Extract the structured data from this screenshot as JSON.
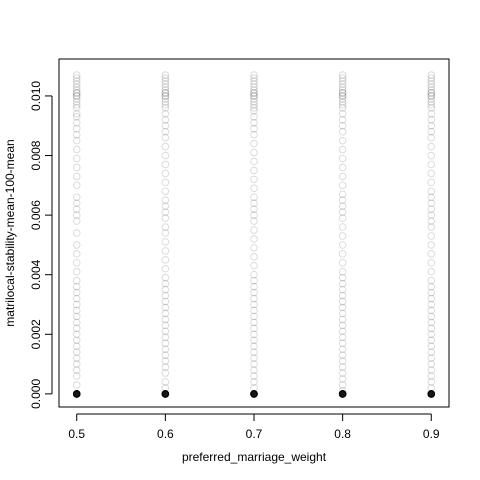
{
  "chart_data": {
    "type": "scatter",
    "xlabel": "preferred_marriage_weight",
    "ylabel": "matrilocal-stability-mean-100-mean",
    "x_ticks": [
      0.5,
      0.6,
      0.7,
      0.8,
      0.9
    ],
    "y_ticks": [
      0.0,
      0.002,
      0.004,
      0.006,
      0.008,
      0.01
    ],
    "y_tick_labels": [
      "0.000",
      "0.002",
      "0.004",
      "0.006",
      "0.008",
      "0.010"
    ],
    "xlim": [
      0.48,
      0.92
    ],
    "ylim": [
      -0.00044,
      0.01124
    ],
    "grid": false,
    "point_style": "open circle, semi-transparent black",
    "series": [
      {
        "x": 0.5,
        "y": [
          0.0,
          0.0,
          0.0,
          0.0003,
          0.0006,
          0.0008,
          0.001,
          0.0012,
          0.0014,
          0.0016,
          0.0018,
          0.002,
          0.0022,
          0.0024,
          0.0026,
          0.0028,
          0.003,
          0.0032,
          0.0034,
          0.0036,
          0.0038,
          0.0041,
          0.0044,
          0.0047,
          0.005,
          0.0054,
          0.0058,
          0.006,
          0.0062,
          0.0064,
          0.0066,
          0.007,
          0.0073,
          0.0076,
          0.0079,
          0.0082,
          0.0085,
          0.0087,
          0.0089,
          0.0091,
          0.0093,
          0.0094,
          0.0096,
          0.0097,
          0.0098,
          0.0099,
          0.01,
          0.01,
          0.0101,
          0.0101,
          0.0102,
          0.0103,
          0.0104,
          0.0105,
          0.0106,
          0.0107
        ]
      },
      {
        "x": 0.6,
        "y": [
          0.0,
          0.0,
          0.0,
          0.0002,
          0.0004,
          0.0007,
          0.0009,
          0.0011,
          0.0013,
          0.0015,
          0.0017,
          0.0019,
          0.0021,
          0.0023,
          0.0025,
          0.0027,
          0.0029,
          0.0031,
          0.0033,
          0.0035,
          0.0037,
          0.0039,
          0.0042,
          0.0045,
          0.0048,
          0.0051,
          0.0054,
          0.0056,
          0.0059,
          0.0061,
          0.0063,
          0.0065,
          0.0068,
          0.0071,
          0.0074,
          0.0077,
          0.008,
          0.0083,
          0.0086,
          0.0088,
          0.009,
          0.0092,
          0.0094,
          0.0096,
          0.0097,
          0.0098,
          0.0099,
          0.01,
          0.01,
          0.0101,
          0.0101,
          0.0102,
          0.0103,
          0.0104,
          0.0105,
          0.0106,
          0.0107
        ]
      },
      {
        "x": 0.7,
        "y": [
          0.0,
          0.0,
          0.0,
          0.0002,
          0.0004,
          0.0006,
          0.0008,
          0.001,
          0.0012,
          0.0014,
          0.0016,
          0.0018,
          0.002,
          0.0022,
          0.0024,
          0.0026,
          0.0028,
          0.003,
          0.0032,
          0.0034,
          0.0036,
          0.0038,
          0.004,
          0.0043,
          0.0046,
          0.0049,
          0.0052,
          0.0055,
          0.0058,
          0.006,
          0.0062,
          0.0064,
          0.0066,
          0.0069,
          0.0072,
          0.0075,
          0.0078,
          0.0081,
          0.0084,
          0.0087,
          0.0089,
          0.0091,
          0.0093,
          0.0095,
          0.0096,
          0.0097,
          0.0098,
          0.0099,
          0.01,
          0.01,
          0.0101,
          0.0101,
          0.0102,
          0.0103,
          0.0104,
          0.0105,
          0.0106,
          0.0107
        ]
      },
      {
        "x": 0.8,
        "y": [
          0.0,
          0.0,
          0.0,
          0.0001,
          0.0003,
          0.0005,
          0.0007,
          0.0009,
          0.0011,
          0.0013,
          0.0015,
          0.0017,
          0.0019,
          0.0021,
          0.0023,
          0.0025,
          0.0027,
          0.0029,
          0.0031,
          0.0033,
          0.0035,
          0.0037,
          0.0039,
          0.0041,
          0.0044,
          0.0047,
          0.005,
          0.0053,
          0.0056,
          0.0059,
          0.0061,
          0.0063,
          0.0065,
          0.0067,
          0.007,
          0.0073,
          0.0076,
          0.0079,
          0.0082,
          0.0085,
          0.0088,
          0.009,
          0.0092,
          0.0094,
          0.0096,
          0.0097,
          0.0098,
          0.0099,
          0.01,
          0.01,
          0.0101,
          0.0101,
          0.0102,
          0.0103,
          0.0104,
          0.0105,
          0.0106,
          0.0107
        ]
      },
      {
        "x": 0.9,
        "y": [
          0.0,
          0.0,
          0.0,
          0.0002,
          0.0004,
          0.0006,
          0.0008,
          0.001,
          0.0012,
          0.0014,
          0.0016,
          0.0018,
          0.002,
          0.0022,
          0.0024,
          0.0026,
          0.0028,
          0.003,
          0.0032,
          0.0034,
          0.0036,
          0.0038,
          0.0041,
          0.0044,
          0.0047,
          0.005,
          0.0053,
          0.0056,
          0.0058,
          0.006,
          0.0062,
          0.0064,
          0.0066,
          0.0068,
          0.0071,
          0.0074,
          0.0077,
          0.008,
          0.0083,
          0.0086,
          0.0088,
          0.009,
          0.0092,
          0.0094,
          0.0096,
          0.0097,
          0.0098,
          0.0099,
          0.01,
          0.01,
          0.0101,
          0.0101,
          0.0102,
          0.0103,
          0.0104,
          0.0105,
          0.0106,
          0.0107
        ]
      }
    ]
  }
}
